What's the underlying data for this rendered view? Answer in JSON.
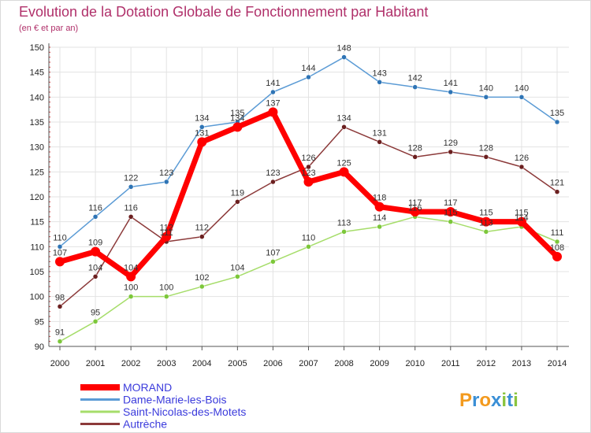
{
  "chart_data": {
    "type": "line",
    "title": "Evolution de la Dotation Globale de Fonctionnement par Habitant",
    "subtitle": "(en € et par an)",
    "xlabel": "",
    "ylabel": "",
    "x": [
      2000,
      2001,
      2002,
      2003,
      2004,
      2005,
      2006,
      2007,
      2008,
      2009,
      2010,
      2011,
      2012,
      2013,
      2014
    ],
    "ylim": [
      90,
      150
    ],
    "yticks": [
      90,
      95,
      100,
      105,
      110,
      115,
      120,
      125,
      130,
      135,
      140,
      145,
      150
    ],
    "grid": true,
    "legend_position": "bottom-left",
    "series": [
      {
        "name": "Dame-Marie-les-Bois",
        "color": "#5b9bd5",
        "marker": "#2e74b5",
        "width": 1.5,
        "values": [
          110,
          116,
          122,
          123,
          134,
          135,
          141,
          144,
          148,
          143,
          142,
          141,
          140,
          140,
          135
        ]
      },
      {
        "name": "Saint-Nicolas-des-Motets",
        "color": "#a6dd6a",
        "marker": "#7cc73a",
        "width": 1.5,
        "values": [
          91,
          95,
          100,
          100,
          102,
          104,
          107,
          110,
          113,
          114,
          116,
          115,
          113,
          114,
          111
        ]
      },
      {
        "name": "Autrèche",
        "color": "#8c3a3a",
        "marker": "#6b1f1f",
        "width": 1.5,
        "values": [
          98,
          104,
          116,
          111,
          112,
          119,
          123,
          126,
          134,
          131,
          128,
          129,
          128,
          126,
          121
        ]
      },
      {
        "name": "MORAND",
        "color": "#ff0000",
        "marker": "#ff0000",
        "width": 7,
        "values": [
          107,
          109,
          104,
          112,
          131,
          134,
          137,
          123,
          125,
          118,
          117,
          117,
          115,
          115,
          108
        ]
      }
    ],
    "legend": [
      {
        "name": "MORAND",
        "color": "#ff0000",
        "text_color": "#3b3bdc"
      },
      {
        "name": "Dame-Marie-les-Bois",
        "color": "#5b9bd5",
        "text_color": "#3b3bdc"
      },
      {
        "name": "Saint-Nicolas-des-Motets",
        "color": "#a6dd6a",
        "text_color": "#3b3bdc"
      },
      {
        "name": "Autrèche",
        "color": "#8c3a3a",
        "text_color": "#3b3bdc"
      }
    ]
  },
  "logo": {
    "text": "Proxiti",
    "letters": [
      {
        "ch": "P",
        "color": "#f39a1e"
      },
      {
        "ch": "r",
        "color": "#3a8fd6"
      },
      {
        "ch": "o",
        "color": "#f39a1e"
      },
      {
        "ch": "x",
        "color": "#3a8fd6"
      },
      {
        "ch": "i",
        "color": "#8ac43f"
      },
      {
        "ch": "t",
        "color": "#3a8fd6"
      },
      {
        "ch": "i",
        "color": "#8ac43f"
      }
    ]
  }
}
